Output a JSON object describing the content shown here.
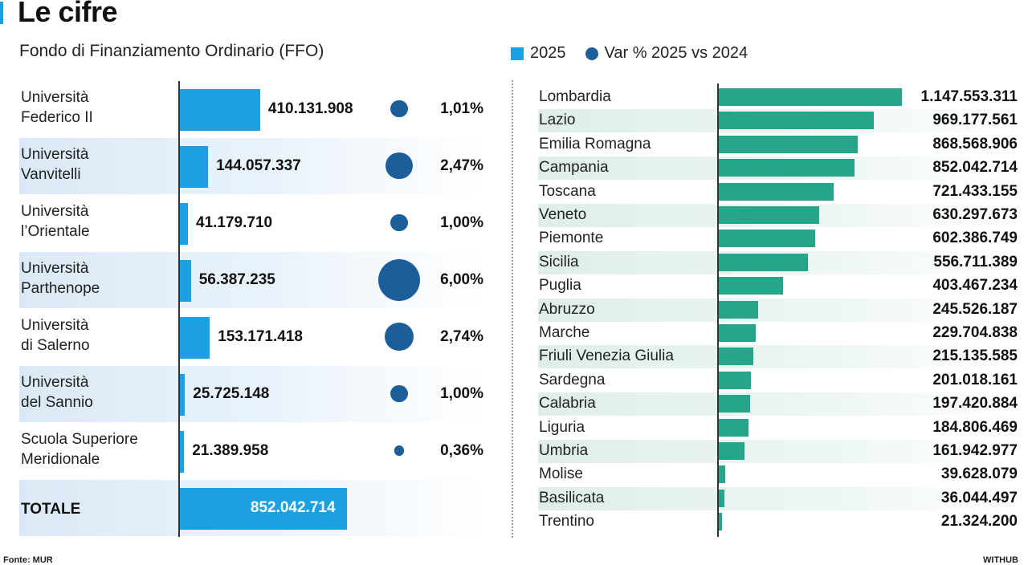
{
  "title": "Le cifre",
  "subtitle": "Fondo di Finanziamento Ordinario (FFO)",
  "legend": {
    "bar_label": "2025",
    "dot_label": "Var % 2025 vs 2024"
  },
  "colors": {
    "accent": "#1ba1e2",
    "dot": "#1b5e99",
    "region_bar": "#27a58a"
  },
  "chart_data": [
    {
      "type": "bar",
      "orientation": "horizontal",
      "title": "Fondo di Finanziamento Ordinario (FFO)",
      "categories": [
        [
          "Università",
          "Federico II"
        ],
        [
          "Università",
          "Vanvitelli"
        ],
        [
          "Università",
          "l’Orientale"
        ],
        [
          "Università",
          "Parthenope"
        ],
        [
          "Università",
          "di Salerno"
        ],
        [
          "Università",
          "del Sannio"
        ],
        [
          "Scuola Superiore",
          "Meridionale"
        ]
      ],
      "series": [
        {
          "name": "2025",
          "values": [
            410131908,
            144057337,
            41179710,
            56387235,
            153171418,
            25725148,
            21389958
          ],
          "labels": [
            "410.131.908",
            "144.057.337",
            "41.179.710",
            "56.387.235",
            "153.171.418",
            "25.725.148",
            "21.389.958"
          ]
        },
        {
          "name": "Var % 2025 vs 2024",
          "values": [
            1.01,
            2.47,
            1.0,
            6.0,
            2.74,
            1.0,
            0.36
          ],
          "labels": [
            "1,01%",
            "2,47%",
            "1,00%",
            "6,00%",
            "2,74%",
            "1,00%",
            "0,36%"
          ]
        }
      ],
      "total": {
        "label": "TOTALE",
        "value": 852042714,
        "display": "852.042.714"
      },
      "xlim": [
        0,
        1560000000
      ]
    },
    {
      "type": "bar",
      "orientation": "horizontal",
      "categories": [
        "Lombardia",
        "Lazio",
        "Emilia Romagna",
        "Campania",
        "Toscana",
        "Veneto",
        "Piemonte",
        "Sicilia",
        "Puglia",
        "Abruzzo",
        "Marche",
        "Friuli Venezia Giulia",
        "Sardegna",
        "Calabria",
        "Liguria",
        "Umbria",
        "Molise",
        "Basilicata",
        "Trentino"
      ],
      "series": [
        {
          "name": "2025",
          "values": [
            1147553311,
            969177561,
            868568906,
            852042714,
            721433155,
            630297673,
            602386749,
            556711389,
            403467234,
            245526187,
            229704838,
            215135585,
            201018161,
            197420884,
            184806469,
            161942977,
            39628079,
            36044497,
            21324200
          ],
          "labels": [
            "1.147.553.311",
            "969.177.561",
            "868.568.906",
            "852.042.714",
            "721.433.155",
            "630.297.673",
            "602.386.749",
            "556.711.389",
            "403.467.234",
            "245.526.187",
            "229.704.838",
            "215.135.585",
            "201.018.161",
            "197.420.884",
            "184.806.469",
            "161.942.977",
            "39.628.079",
            "36.044.497",
            "21.324.200"
          ]
        }
      ],
      "xlim": [
        0,
        1147553311
      ]
    }
  ],
  "footer": {
    "source": "Fonte: MUR",
    "credit": "WITHUB"
  }
}
